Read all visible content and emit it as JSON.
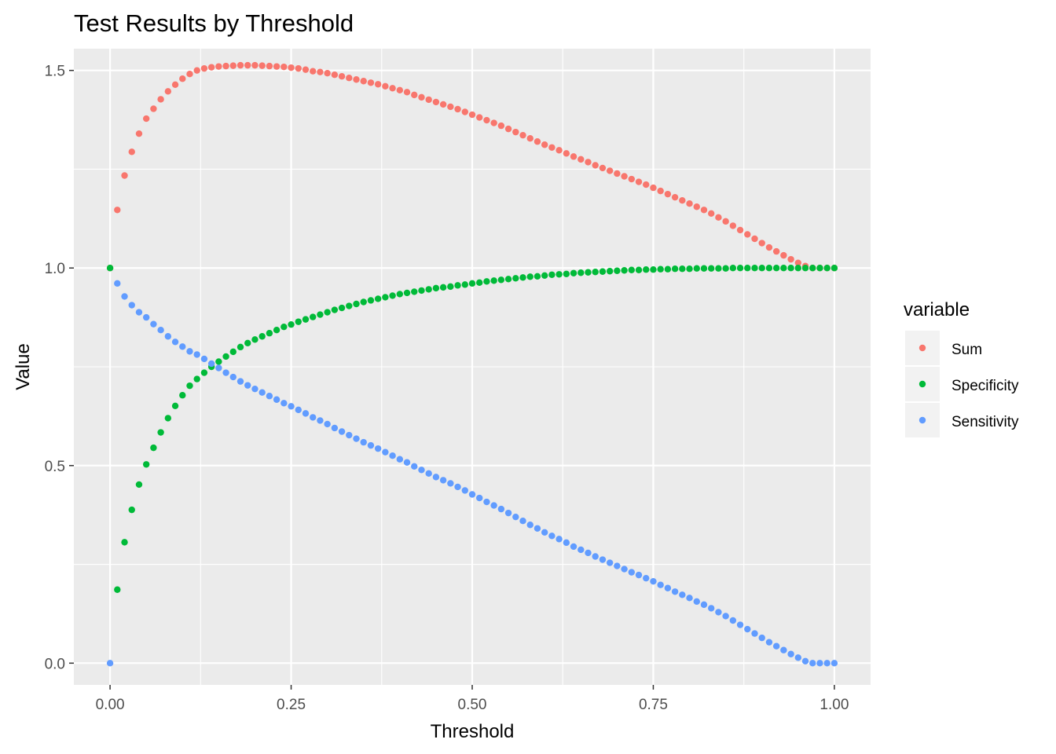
{
  "chart_data": {
    "type": "scatter",
    "title": "Test Results by Threshold",
    "xlabel": "Threshold",
    "ylabel": "Value",
    "xlim": [
      -0.05,
      1.05
    ],
    "ylim": [
      -0.055,
      1.555
    ],
    "x_ticks": [
      0,
      0.25,
      0.5,
      0.75,
      1.0
    ],
    "x_tick_labels": [
      "0.00",
      "0.25",
      "0.50",
      "0.75",
      "1.00"
    ],
    "y_ticks": [
      0,
      0.5,
      1.0,
      1.5
    ],
    "y_tick_labels": [
      "0.0",
      "0.5",
      "1.0",
      "1.5"
    ],
    "grid": true,
    "legend": {
      "title": "variable",
      "position": "right",
      "entries": [
        "Sum",
        "Specificity",
        "Sensitivity"
      ]
    },
    "x_start": 0,
    "x_step": 0.01,
    "series": [
      {
        "name": "Sum",
        "color": "#F8766D",
        "values": [
          1.0,
          1.147,
          1.234,
          1.294,
          1.34,
          1.378,
          1.403,
          1.427,
          1.447,
          1.464,
          1.479,
          1.491,
          1.5,
          1.505,
          1.508,
          1.51,
          1.511,
          1.512,
          1.513,
          1.513,
          1.513,
          1.512,
          1.511,
          1.51,
          1.509,
          1.507,
          1.505,
          1.502,
          1.498,
          1.496,
          1.493,
          1.489,
          1.485,
          1.481,
          1.477,
          1.473,
          1.469,
          1.465,
          1.46,
          1.455,
          1.45,
          1.445,
          1.438,
          1.432,
          1.426,
          1.42,
          1.414,
          1.408,
          1.402,
          1.395,
          1.388,
          1.381,
          1.374,
          1.367,
          1.36,
          1.352,
          1.344,
          1.336,
          1.328,
          1.32,
          1.312,
          1.305,
          1.298,
          1.29,
          1.282,
          1.275,
          1.268,
          1.26,
          1.253,
          1.246,
          1.239,
          1.232,
          1.225,
          1.218,
          1.211,
          1.203,
          1.195,
          1.187,
          1.179,
          1.171,
          1.163,
          1.155,
          1.147,
          1.138,
          1.128,
          1.118,
          1.107,
          1.096,
          1.085,
          1.074,
          1.063,
          1.052,
          1.042,
          1.032,
          1.022,
          1.013,
          1.005,
          1.0,
          1.0,
          1.0,
          1.0
        ]
      },
      {
        "name": "Specificity",
        "color": "#00BA38",
        "values": [
          1.0,
          0.186,
          0.306,
          0.388,
          0.452,
          0.503,
          0.545,
          0.584,
          0.62,
          0.651,
          0.678,
          0.702,
          0.719,
          0.735,
          0.75,
          0.763,
          0.776,
          0.788,
          0.8,
          0.81,
          0.819,
          0.827,
          0.835,
          0.843,
          0.851,
          0.857,
          0.864,
          0.87,
          0.876,
          0.882,
          0.888,
          0.894,
          0.899,
          0.904,
          0.909,
          0.914,
          0.918,
          0.922,
          0.926,
          0.93,
          0.934,
          0.937,
          0.94,
          0.943,
          0.946,
          0.949,
          0.951,
          0.953,
          0.956,
          0.958,
          0.961,
          0.963,
          0.966,
          0.968,
          0.97,
          0.972,
          0.974,
          0.976,
          0.978,
          0.979,
          0.981,
          0.983,
          0.984,
          0.985,
          0.987,
          0.988,
          0.989,
          0.99,
          0.991,
          0.992,
          0.993,
          0.994,
          0.995,
          0.995,
          0.996,
          0.996,
          0.997,
          0.997,
          0.998,
          0.998,
          0.998,
          0.999,
          0.999,
          0.999,
          0.999,
          0.999,
          1.0,
          1.0,
          1.0,
          1.0,
          1.0,
          1.0,
          1.0,
          1.0,
          1.0,
          1.0,
          1.0,
          1.0,
          1.0,
          1.0,
          1.0
        ]
      },
      {
        "name": "Sensitivity",
        "color": "#619CFF",
        "values": [
          0.0,
          0.961,
          0.928,
          0.906,
          0.888,
          0.875,
          0.858,
          0.843,
          0.827,
          0.813,
          0.801,
          0.789,
          0.781,
          0.77,
          0.758,
          0.747,
          0.735,
          0.724,
          0.713,
          0.703,
          0.694,
          0.685,
          0.676,
          0.667,
          0.658,
          0.65,
          0.641,
          0.632,
          0.622,
          0.614,
          0.605,
          0.595,
          0.586,
          0.577,
          0.568,
          0.559,
          0.551,
          0.543,
          0.534,
          0.525,
          0.516,
          0.508,
          0.498,
          0.489,
          0.48,
          0.471,
          0.463,
          0.455,
          0.446,
          0.437,
          0.427,
          0.418,
          0.408,
          0.399,
          0.39,
          0.38,
          0.37,
          0.36,
          0.35,
          0.341,
          0.331,
          0.322,
          0.314,
          0.305,
          0.295,
          0.287,
          0.279,
          0.27,
          0.262,
          0.254,
          0.246,
          0.238,
          0.23,
          0.223,
          0.215,
          0.207,
          0.198,
          0.19,
          0.181,
          0.173,
          0.165,
          0.156,
          0.148,
          0.139,
          0.129,
          0.119,
          0.108,
          0.097,
          0.086,
          0.075,
          0.064,
          0.053,
          0.043,
          0.033,
          0.023,
          0.014,
          0.005,
          0.0,
          0.0,
          0.0,
          0.0
        ]
      }
    ]
  }
}
